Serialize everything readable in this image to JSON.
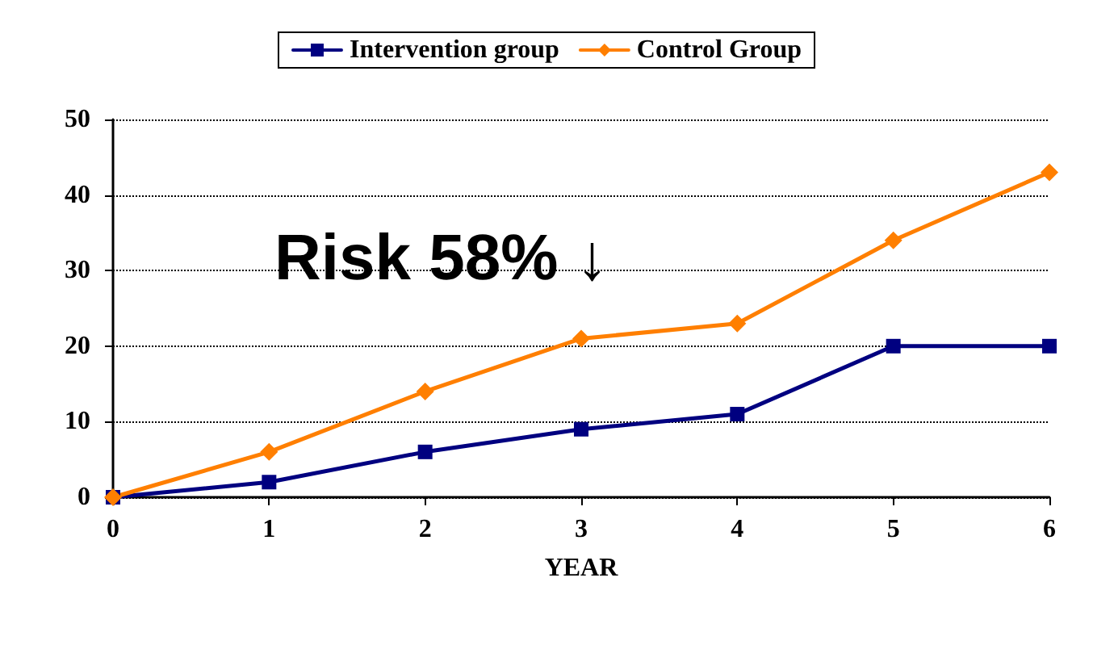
{
  "chart_data": {
    "type": "line",
    "xlabel": "YEAR",
    "x": [
      0,
      1,
      2,
      3,
      4,
      5,
      6
    ],
    "series": [
      {
        "name": "Intervention group",
        "color": "#000080",
        "marker": "square",
        "values": [
          0,
          2,
          6,
          9,
          11,
          20,
          20
        ]
      },
      {
        "name": "Control Group",
        "color": "#ff7f00",
        "marker": "diamond",
        "values": [
          0,
          6,
          14,
          21,
          23,
          34,
          43
        ]
      }
    ],
    "xlim": [
      0,
      6
    ],
    "xticks": [
      0,
      1,
      2,
      3,
      4,
      5,
      6
    ],
    "ylim": [
      0,
      50
    ],
    "yticks": [
      0,
      10,
      20,
      30,
      40,
      50
    ],
    "grid": "y",
    "legend": "top",
    "line_style": "solid",
    "annotations": [
      "Risk 58% ↓"
    ]
  }
}
